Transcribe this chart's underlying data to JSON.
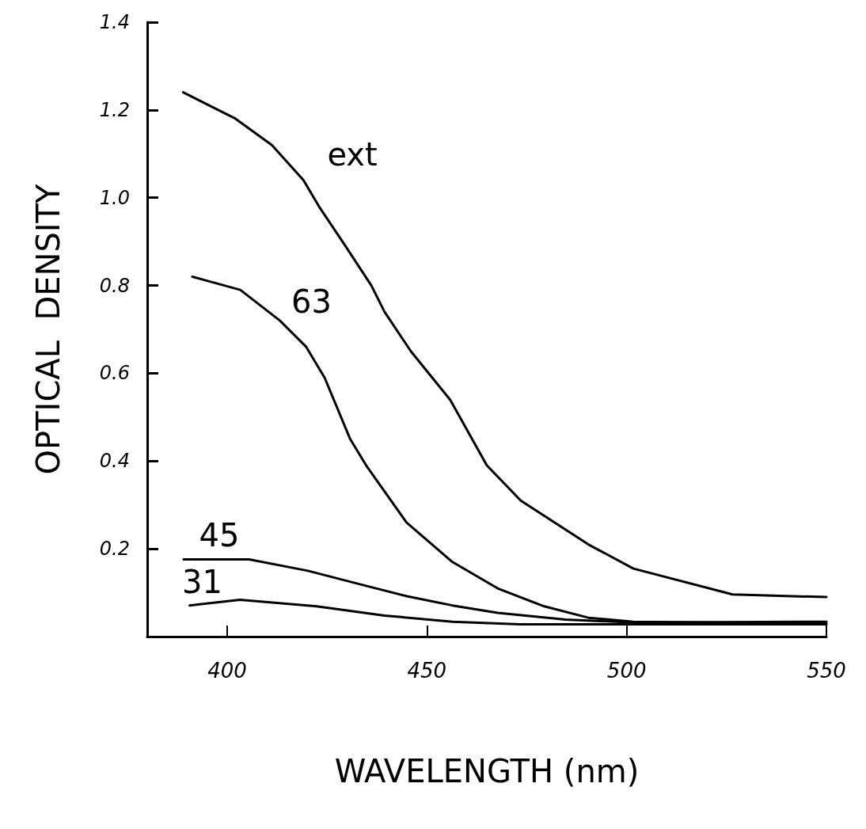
{
  "chart_data": {
    "type": "line",
    "xlabel": "WAVELENGTH (nm)",
    "ylabel": "OPTICAL  DENSITY",
    "xlim": [
      380,
      550
    ],
    "xticks": [
      400,
      450,
      500,
      550
    ],
    "ylim": [
      0,
      1.4
    ],
    "yticks": [
      0.2,
      0.4,
      0.6,
      0.8,
      {
        "value": 1,
        "label": "1.0"
      },
      1.2,
      1.4
    ],
    "grid": false,
    "legend": false,
    "marker": "none",
    "line_style": "solid",
    "series": [
      {
        "name": "ext",
        "color": "#000000",
        "x": [
          389,
          402.1,
          411.2,
          419.1,
          423,
          429.6,
          436.1,
          439.4,
          446,
          455.8,
          465,
          473.5,
          490.4,
          501.7,
          526.5,
          550
        ],
        "values": [
          1.24,
          1.18,
          1.12,
          1.04,
          0.98,
          0.89,
          0.8,
          0.74,
          0.65,
          0.54,
          0.39,
          0.31,
          0.21,
          0.155,
          0.096,
          0.09
        ]
      },
      {
        "name": "63",
        "color": "#000000",
        "x": [
          391.3,
          403.3,
          413.2,
          419.8,
          424.4,
          427.6,
          430.8,
          434.8,
          444.9,
          456.4,
          467.7,
          479,
          490.4,
          501.6,
          550
        ],
        "values": [
          0.82,
          0.79,
          0.72,
          0.66,
          0.59,
          0.52,
          0.45,
          0.39,
          0.26,
          0.17,
          0.11,
          0.07,
          0.043,
          0.034,
          0.03
        ]
      },
      {
        "name": "45",
        "color": "#000000",
        "x": [
          389.1,
          405.5,
          420.2,
          433.8,
          445,
          456.4,
          467.7,
          484.7,
          501.6,
          550
        ],
        "values": [
          0.176,
          0.176,
          0.15,
          0.118,
          0.092,
          0.071,
          0.054,
          0.039,
          0.032,
          0.034
        ]
      },
      {
        "name": "31",
        "color": "#000000",
        "x": [
          390.6,
          403.2,
          422.4,
          439.4,
          456.4,
          473.4,
          501.6,
          550
        ],
        "values": [
          0.071,
          0.084,
          0.069,
          0.048,
          0.034,
          0.028,
          0.028,
          0.028
        ]
      }
    ]
  }
}
